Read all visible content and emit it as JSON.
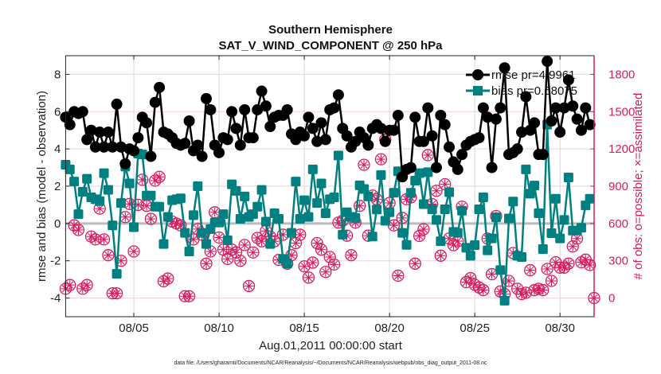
{
  "chart_data": {
    "type": "line",
    "title": "Southern Hemisphere",
    "subtitle": "SAT_V_WIND_COMPONENT @ 250 hPa",
    "xlabel": "Aug.01,2011 00:00:00 start",
    "ylabel": "rmse and bias (model - observation)",
    "ylabel_right": "# of obs: o=possible; ×=assimilated",
    "xlim": [
      "08/01 00Z",
      "09/01 00Z"
    ],
    "ylim": [
      -5,
      9
    ],
    "ylim_right": [
      -150,
      1950
    ],
    "x_ticks": [
      "08/05",
      "08/10",
      "08/15",
      "08/20",
      "08/25",
      "08/30"
    ],
    "y_ticks": [
      "-4",
      "-2",
      "0",
      "2",
      "4",
      "6",
      "8"
    ],
    "y_ticks_right": [
      "0",
      "300",
      "600",
      "900",
      "1200",
      "1500",
      "1800"
    ],
    "grid": true,
    "legend_position": "top-right",
    "footer": "data file: /Users/gharamti/Documents/NCAR/Reanalysis/~/Documents/NCAR/Reanalysis/webpub/obs_diag_output_2011-08.nc",
    "colors": {
      "rmse": "#000000",
      "bias": "#008080",
      "obs": "#d81b60",
      "zero_line": "#bbbbbb",
      "grid": "#f3cfdc"
    },
    "x": [
      "08/01 00Z",
      "08/01 06Z",
      "08/01 12Z",
      "08/01 18Z",
      "08/02 00Z",
      "08/02 06Z",
      "08/02 12Z",
      "08/02 18Z",
      "08/03 00Z",
      "08/03 06Z",
      "08/03 12Z",
      "08/03 18Z",
      "08/04 00Z",
      "08/04 06Z",
      "08/04 12Z",
      "08/04 18Z",
      "08/05 00Z",
      "08/05 06Z",
      "08/05 12Z",
      "08/05 18Z",
      "08/06 00Z",
      "08/06 06Z",
      "08/06 12Z",
      "08/06 18Z",
      "08/07 00Z",
      "08/07 06Z",
      "08/07 12Z",
      "08/07 18Z",
      "08/08 00Z",
      "08/08 06Z",
      "08/08 12Z",
      "08/08 18Z",
      "08/09 00Z",
      "08/09 06Z",
      "08/09 12Z",
      "08/09 18Z",
      "08/10 00Z",
      "08/10 06Z",
      "08/10 12Z",
      "08/10 18Z",
      "08/11 00Z",
      "08/11 06Z",
      "08/11 12Z",
      "08/11 18Z",
      "08/12 00Z",
      "08/12 06Z",
      "08/12 12Z",
      "08/12 18Z",
      "08/13 00Z",
      "08/13 06Z",
      "08/13 12Z",
      "08/13 18Z",
      "08/14 00Z",
      "08/14 06Z",
      "08/14 12Z",
      "08/14 18Z",
      "08/15 00Z",
      "08/15 06Z",
      "08/15 12Z",
      "08/15 18Z",
      "08/16 00Z",
      "08/16 06Z",
      "08/16 12Z",
      "08/16 18Z",
      "08/17 00Z",
      "08/17 06Z",
      "08/17 12Z",
      "08/17 18Z",
      "08/18 00Z",
      "08/18 06Z",
      "08/18 12Z",
      "08/18 18Z",
      "08/19 00Z",
      "08/19 06Z",
      "08/19 12Z",
      "08/19 18Z",
      "08/20 00Z",
      "08/20 06Z",
      "08/20 12Z",
      "08/20 18Z",
      "08/21 00Z",
      "08/21 06Z",
      "08/21 12Z",
      "08/21 18Z",
      "08/22 00Z",
      "08/22 06Z",
      "08/22 12Z",
      "08/22 18Z",
      "08/23 00Z",
      "08/23 06Z",
      "08/23 12Z",
      "08/23 18Z",
      "08/24 00Z",
      "08/24 06Z",
      "08/24 12Z",
      "08/24 18Z",
      "08/25 00Z",
      "08/25 06Z",
      "08/25 12Z",
      "08/25 18Z",
      "08/26 00Z",
      "08/26 06Z",
      "08/26 12Z",
      "08/26 18Z",
      "08/27 00Z",
      "08/27 06Z",
      "08/27 12Z",
      "08/27 18Z",
      "08/28 00Z",
      "08/28 06Z",
      "08/28 12Z",
      "08/28 18Z",
      "08/29 00Z",
      "08/29 06Z",
      "08/29 12Z",
      "08/29 18Z",
      "08/30 00Z",
      "08/30 06Z",
      "08/30 12Z",
      "08/30 18Z",
      "08/31 00Z",
      "08/31 06Z",
      "08/31 12Z",
      "08/31 18Z",
      "09/01 00Z"
    ],
    "series": [
      {
        "name": "rmse pr=4.9961",
        "axis": "left",
        "marker": "circle",
        "values": [
          5.7,
          5.3,
          6.0,
          5.9,
          6.0,
          4.5,
          5.0,
          4.1,
          4.9,
          4.1,
          4.9,
          4.1,
          6.4,
          4.1,
          3.2,
          4.0,
          3.9,
          4.6,
          5.7,
          5.4,
          3.6,
          6.5,
          7.3,
          4.9,
          4.8,
          4.6,
          4.3,
          4.2,
          4.3,
          5.5,
          3.9,
          4.2,
          3.6,
          6.7,
          6.1,
          4.2,
          3.8,
          4.6,
          4.5,
          6.0,
          5.1,
          4.2,
          6.1,
          4.6,
          4.6,
          6.1,
          7.1,
          6.3,
          5.2,
          5.7,
          5.8,
          5.8,
          6.1,
          4.8,
          4.5,
          4.9,
          4.7,
          5.7,
          5.1,
          4.4,
          5.4,
          4.5,
          6.1,
          6.2,
          6.9,
          5.1,
          4.7,
          4.1,
          4.4,
          4.9,
          4.6,
          4.2,
          5.1,
          5.3,
          5.1,
          4.4,
          5.0,
          5.0,
          5.8,
          2.5,
          2.9,
          3.0,
          5.7,
          4.4,
          4.4,
          6.2,
          4.7,
          3.0,
          5.8,
          5.3,
          4.1,
          3.3,
          2.9,
          3.7,
          4.2,
          4.4,
          4.5,
          4.6,
          6.2,
          5.7,
          3.0,
          5.6,
          6.2,
          8.35,
          3.7,
          3.8,
          4.0,
          4.9,
          6.8,
          5.0,
          5.4,
          3.7,
          3.7,
          8.7,
          5.5,
          6.2,
          4.9,
          6.2,
          7.7,
          6.3,
          5.6,
          5.0,
          6.2,
          5.3,
          null
        ]
      },
      {
        "name": "bias pr=0.68075",
        "axis": "left",
        "marker": "square",
        "values": [
          3.15,
          2.9,
          2.25,
          0.5,
          1.7,
          2.4,
          1.4,
          1.3,
          1.2,
          2.7,
          1.8,
          -0.1,
          -2.7,
          1.1,
          3.05,
          2.15,
          -0.2,
          3.75,
          3.7,
          1.5,
          1.5,
          0.9,
          0.9,
          -1.1,
          0.35,
          1.25,
          1.3,
          1.35,
          -0.5,
          -1.5,
          0.45,
          2.0,
          -0.5,
          -1.1,
          -0.3,
          0.05,
          0.05,
          0.5,
          -0.9,
          2.1,
          1.75,
          0.25,
          1.45,
          0.35,
          0.5,
          0.9,
          1.8,
          0.1,
          -1.1,
          0.55,
          0.25,
          -1.9,
          -2.15,
          -0.5,
          2.25,
          0.25,
          1.25,
          0.35,
          2.9,
          1.1,
          2.15,
          0.55,
          1.3,
          1.4,
          3.65,
          -0.6,
          0.6,
          0.35,
          0.3,
          2.05,
          1.85,
          1.45,
          -0.7,
          0.75,
          2.6,
          0.15,
          0.6,
          1.65,
          2.8,
          -0.5,
          -1.15,
          1.65,
          2.3,
          2.7,
          1.04,
          2.75,
          0.76,
          0.19,
          -0.95,
          0.76,
          1.68,
          -0.45,
          -0.5,
          0.69,
          -1.3,
          -1.73,
          -1.16,
          0.76,
          1.4,
          -1.44,
          -0.8,
          0.33,
          -2.5,
          -4.14,
          0.27,
          1.18,
          -1.73,
          -1.8,
          2.9,
          1.6,
          2.04,
          0.55,
          -1.37,
          5.3,
          -0.52,
          1.33,
          -0.8,
          0.19,
          2.47,
          -0.38,
          -0.38,
          -0.23,
          0.97,
          1.33,
          null
        ]
      },
      {
        "axis": "right",
        "marker": "circle-asterisk",
        "values_possible": [
          75,
          105,
          585,
          548,
          75,
          105,
          495,
          472,
          720,
          472,
          345,
          38,
          38,
          300,
          652,
          757,
          375,
          750,
          952,
          742,
          637,
          945,
          975,
          135,
          157,
          615,
          600,
          585,
          15,
          15,
          472,
          555,
          510,
          277,
          375,
          690,
          487,
          390,
          315,
          390,
          367,
          300,
          427,
          97,
          367,
          484,
          457,
          540,
          495,
          457,
          307,
          510,
          277,
          345,
          442,
          510,
          255,
          165,
          285,
          442,
          390,
          210,
          330,
          270,
          607,
          622,
          502,
          345,
          607,
          742,
          1072,
          502,
          825,
          795,
          1117,
          1275,
          765,
          585,
          180,
          645,
          795,
          810,
          277,
          500,
          554,
          1150,
          756,
          863,
          341,
          916,
          479,
          426,
          458,
          735,
          128,
          160,
          107,
          85,
          64,
          479,
          192,
          660,
          53,
          32,
          138,
          362,
          75,
          32,
          43,
          224,
          64,
          75,
          64,
          234,
          138,
          288,
          245,
          245,
          277,
          415,
          479,
          288,
          309,
          266,
          0
        ],
        "values_assimilated": [
          75,
          105,
          585,
          548,
          75,
          105,
          495,
          472,
          720,
          472,
          345,
          38,
          38,
          300,
          652,
          757,
          375,
          750,
          952,
          742,
          637,
          945,
          975,
          135,
          157,
          615,
          600,
          585,
          15,
          15,
          472,
          555,
          510,
          277,
          375,
          690,
          487,
          390,
          315,
          390,
          367,
          300,
          427,
          97,
          367,
          484,
          457,
          540,
          495,
          457,
          307,
          510,
          277,
          345,
          442,
          510,
          255,
          165,
          285,
          442,
          390,
          210,
          330,
          270,
          607,
          622,
          502,
          345,
          607,
          742,
          1072,
          502,
          825,
          795,
          1117,
          1275,
          765,
          585,
          180,
          645,
          795,
          810,
          277,
          500,
          554,
          1150,
          756,
          863,
          341,
          916,
          479,
          426,
          458,
          735,
          128,
          160,
          107,
          85,
          64,
          479,
          192,
          660,
          53,
          32,
          138,
          362,
          75,
          32,
          43,
          224,
          64,
          75,
          64,
          234,
          138,
          288,
          245,
          245,
          277,
          415,
          479,
          288,
          309,
          266,
          0
        ]
      }
    ]
  }
}
